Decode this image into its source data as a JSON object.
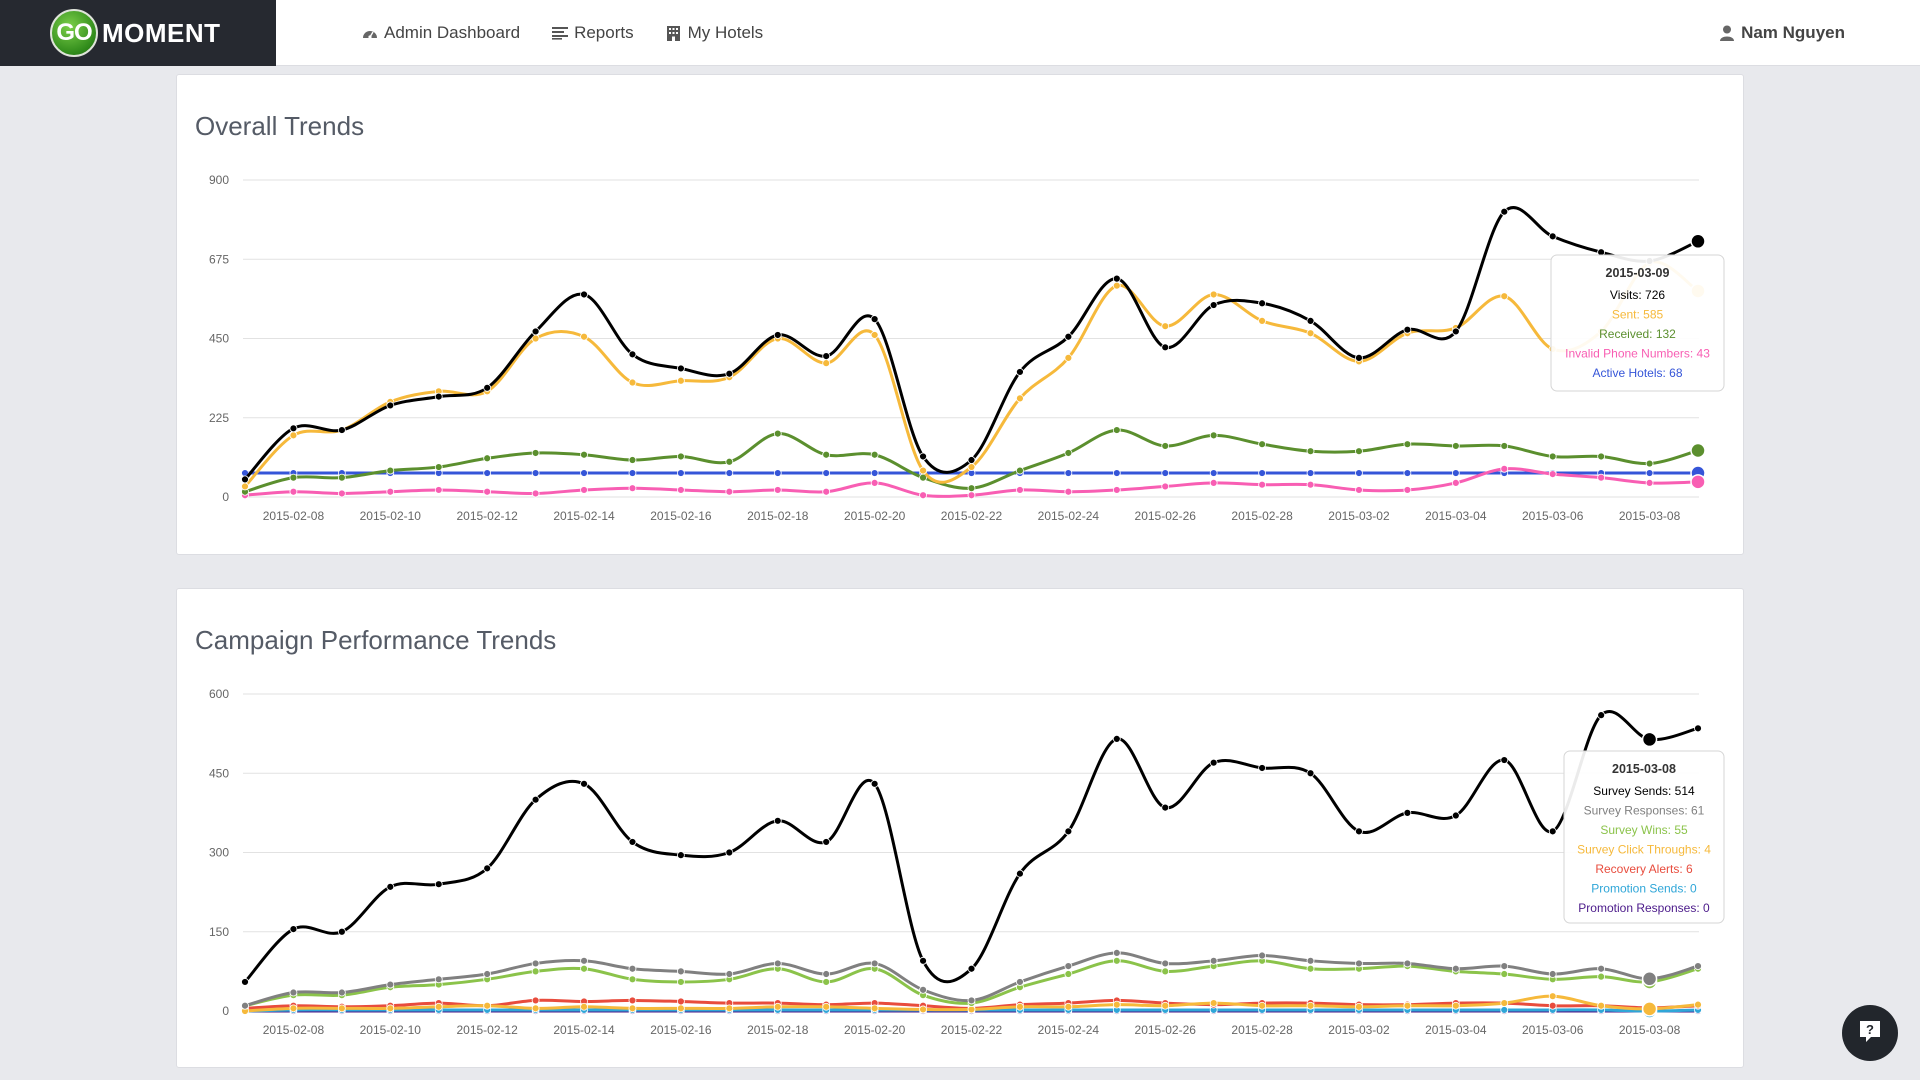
{
  "brand": {
    "go": "GO",
    "name": "MOMENT"
  },
  "nav": [
    {
      "label": "Admin Dashboard",
      "icon": "dashboard-icon"
    },
    {
      "label": "Reports",
      "icon": "list-icon"
    },
    {
      "label": "My Hotels",
      "icon": "building-icon"
    }
  ],
  "user": {
    "name": "Nam Nguyen",
    "icon": "user-icon"
  },
  "cards": {
    "overall": {
      "title": "Overall Trends"
    },
    "campaign": {
      "title": "Campaign Performance Trends"
    }
  },
  "chart_data": [
    {
      "type": "line",
      "title": "Overall Trends",
      "x": [
        "2015-02-07",
        "2015-02-08",
        "2015-02-09",
        "2015-02-10",
        "2015-02-11",
        "2015-02-12",
        "2015-02-13",
        "2015-02-14",
        "2015-02-15",
        "2015-02-16",
        "2015-02-17",
        "2015-02-18",
        "2015-02-19",
        "2015-02-20",
        "2015-02-21",
        "2015-02-22",
        "2015-02-23",
        "2015-02-24",
        "2015-02-25",
        "2015-02-26",
        "2015-02-27",
        "2015-02-28",
        "2015-03-01",
        "2015-03-02",
        "2015-03-03",
        "2015-03-04",
        "2015-03-05",
        "2015-03-06",
        "2015-03-07",
        "2015-03-08",
        "2015-03-09"
      ],
      "x_tick_labels": [
        "2015-02-08",
        "2015-02-10",
        "2015-02-12",
        "2015-02-14",
        "2015-02-16",
        "2015-02-18",
        "2015-02-20",
        "2015-02-22",
        "2015-02-24",
        "2015-02-26",
        "2015-02-28",
        "2015-03-02",
        "2015-03-04",
        "2015-03-06",
        "2015-03-08"
      ],
      "ylim": [
        0,
        900
      ],
      "y_ticks": [
        0,
        225,
        450,
        675,
        900
      ],
      "grid": true,
      "series": [
        {
          "name": "Visits",
          "color": "#000000",
          "values": [
            50,
            195,
            190,
            260,
            285,
            310,
            470,
            575,
            405,
            365,
            350,
            460,
            400,
            505,
            115,
            105,
            355,
            455,
            620,
            425,
            545,
            550,
            500,
            395,
            475,
            470,
            810,
            740,
            695,
            670,
            726
          ]
        },
        {
          "name": "Sent",
          "color": "#f6b93b",
          "values": [
            30,
            175,
            190,
            270,
            300,
            300,
            450,
            455,
            325,
            330,
            340,
            450,
            380,
            460,
            75,
            85,
            280,
            395,
            600,
            485,
            575,
            500,
            465,
            385,
            465,
            480,
            570,
            420,
            470,
            665,
            585
          ]
        },
        {
          "name": "Received",
          "color": "#5b8f2e",
          "values": [
            15,
            55,
            55,
            75,
            85,
            110,
            125,
            120,
            105,
            115,
            100,
            180,
            120,
            120,
            55,
            25,
            75,
            125,
            190,
            145,
            175,
            150,
            130,
            130,
            150,
            145,
            145,
            115,
            115,
            95,
            132
          ]
        },
        {
          "name": "Invalid Phone Numbers",
          "color": "#f85eb3",
          "values": [
            5,
            15,
            10,
            15,
            20,
            15,
            10,
            20,
            25,
            20,
            15,
            20,
            15,
            40,
            5,
            5,
            20,
            15,
            20,
            30,
            40,
            35,
            35,
            20,
            20,
            40,
            80,
            65,
            55,
            40,
            43
          ]
        },
        {
          "name": "Active Hotels",
          "color": "#3555d8",
          "values": [
            68,
            68,
            68,
            68,
            68,
            68,
            68,
            68,
            68,
            68,
            68,
            68,
            68,
            68,
            68,
            68,
            68,
            68,
            68,
            68,
            68,
            68,
            68,
            68,
            68,
            68,
            68,
            68,
            68,
            68,
            68
          ]
        }
      ],
      "tooltip": {
        "date": "2015-03-09",
        "lines": [
          {
            "text": "Visits: 726",
            "color": "#000000"
          },
          {
            "text": "Sent: 585",
            "color": "#f6b93b"
          },
          {
            "text": "Received: 132",
            "color": "#5b8f2e"
          },
          {
            "text": "Invalid Phone Numbers: 43",
            "color": "#f85eb3"
          },
          {
            "text": "Active Hotels: 68",
            "color": "#3555d8"
          }
        ]
      }
    },
    {
      "type": "line",
      "title": "Campaign Performance Trends",
      "x": [
        "2015-02-07",
        "2015-02-08",
        "2015-02-09",
        "2015-02-10",
        "2015-02-11",
        "2015-02-12",
        "2015-02-13",
        "2015-02-14",
        "2015-02-15",
        "2015-02-16",
        "2015-02-17",
        "2015-02-18",
        "2015-02-19",
        "2015-02-20",
        "2015-02-21",
        "2015-02-22",
        "2015-02-23",
        "2015-02-24",
        "2015-02-25",
        "2015-02-26",
        "2015-02-27",
        "2015-02-28",
        "2015-03-01",
        "2015-03-02",
        "2015-03-03",
        "2015-03-04",
        "2015-03-05",
        "2015-03-06",
        "2015-03-07",
        "2015-03-08",
        "2015-03-09"
      ],
      "x_tick_labels": [
        "2015-02-08",
        "2015-02-10",
        "2015-02-12",
        "2015-02-14",
        "2015-02-16",
        "2015-02-18",
        "2015-02-20",
        "2015-02-22",
        "2015-02-24",
        "2015-02-26",
        "2015-02-28",
        "2015-03-02",
        "2015-03-04",
        "2015-03-06",
        "2015-03-08"
      ],
      "ylim": [
        0,
        600
      ],
      "y_ticks": [
        0,
        150,
        300,
        450,
        600
      ],
      "grid": true,
      "series": [
        {
          "name": "Survey Sends",
          "color": "#000000",
          "values": [
            55,
            155,
            150,
            235,
            240,
            270,
            400,
            430,
            320,
            295,
            300,
            360,
            320,
            430,
            95,
            80,
            260,
            340,
            515,
            385,
            470,
            460,
            450,
            340,
            375,
            370,
            475,
            340,
            560,
            514,
            535
          ]
        },
        {
          "name": "Survey Responses",
          "color": "#808080",
          "values": [
            10,
            35,
            35,
            50,
            60,
            70,
            90,
            95,
            80,
            75,
            70,
            90,
            70,
            90,
            40,
            20,
            55,
            85,
            110,
            90,
            95,
            105,
            95,
            90,
            90,
            80,
            85,
            70,
            80,
            61,
            85
          ]
        },
        {
          "name": "Survey Wins",
          "color": "#8bc34a",
          "values": [
            10,
            30,
            30,
            45,
            50,
            60,
            75,
            80,
            60,
            55,
            60,
            80,
            55,
            80,
            30,
            15,
            45,
            70,
            95,
            75,
            85,
            95,
            80,
            80,
            85,
            75,
            70,
            60,
            65,
            55,
            80
          ]
        },
        {
          "name": "Survey Click Throughs",
          "color": "#f6b93b",
          "values": [
            0,
            5,
            5,
            5,
            8,
            10,
            5,
            8,
            5,
            5,
            5,
            8,
            8,
            5,
            3,
            3,
            8,
            8,
            12,
            10,
            15,
            10,
            10,
            8,
            10,
            10,
            15,
            28,
            10,
            4,
            12
          ]
        },
        {
          "name": "Recovery Alerts",
          "color": "#e84c3d",
          "values": [
            5,
            10,
            8,
            10,
            15,
            10,
            20,
            18,
            20,
            18,
            15,
            15,
            12,
            15,
            10,
            5,
            12,
            15,
            20,
            15,
            12,
            15,
            15,
            12,
            12,
            15,
            15,
            10,
            10,
            6,
            10
          ]
        },
        {
          "name": "Promotion Sends",
          "color": "#2fa6d8",
          "values": [
            0,
            2,
            2,
            2,
            2,
            2,
            2,
            2,
            2,
            2,
            2,
            2,
            2,
            2,
            2,
            2,
            2,
            2,
            2,
            2,
            2,
            2,
            2,
            2,
            2,
            2,
            2,
            2,
            2,
            0,
            2
          ]
        },
        {
          "name": "Promotion Responses",
          "color": "#4b1a8a",
          "values": [
            0,
            0,
            0,
            0,
            0,
            0,
            0,
            0,
            0,
            0,
            0,
            0,
            0,
            0,
            0,
            0,
            0,
            0,
            0,
            0,
            0,
            0,
            0,
            0,
            0,
            0,
            0,
            0,
            0,
            0,
            0
          ]
        }
      ],
      "tooltip": {
        "date": "2015-03-08",
        "lines": [
          {
            "text": "Survey Sends: 514",
            "color": "#000000"
          },
          {
            "text": "Survey Responses: 61",
            "color": "#808080"
          },
          {
            "text": "Survey Wins: 55",
            "color": "#8bc34a"
          },
          {
            "text": "Survey Click Throughs: 4",
            "color": "#f6b93b"
          },
          {
            "text": "Recovery Alerts: 6",
            "color": "#e84c3d"
          },
          {
            "text": "Promotion Sends: 0",
            "color": "#2fa6d8"
          },
          {
            "text": "Promotion Responses: 0",
            "color": "#4b1a8a"
          }
        ]
      }
    }
  ]
}
